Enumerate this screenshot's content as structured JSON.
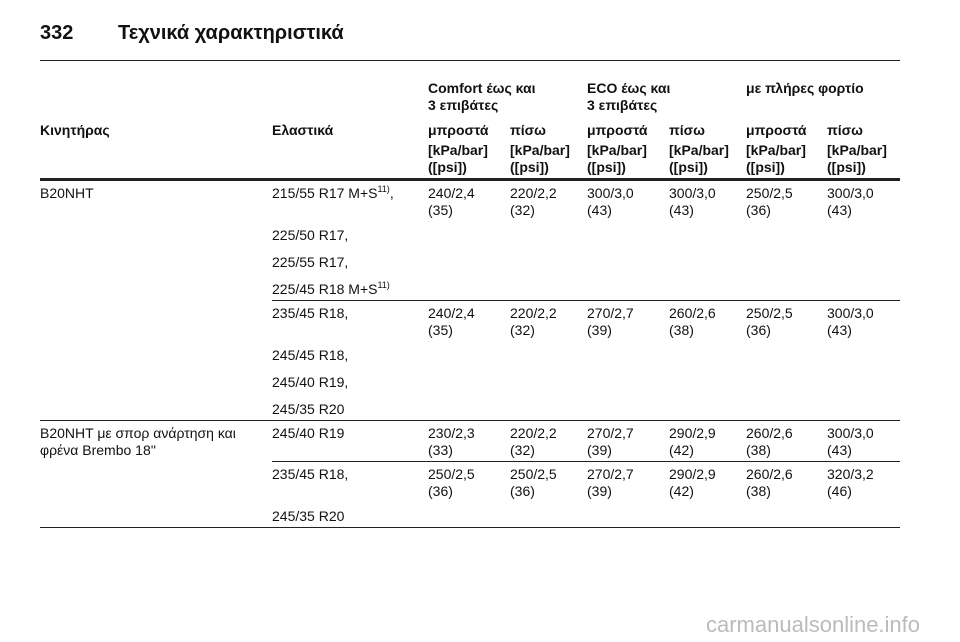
{
  "header": {
    "page_number": "332",
    "title": "Τεχνικά χαρακτηριστικά"
  },
  "table": {
    "group_headers": [
      "Comfort έως και\n3 επιβάτες",
      "ECO έως και\n3 επιβάτες",
      "με πλήρες φορτίο"
    ],
    "column_headers": [
      "Κινητήρας",
      "Ελαστικά",
      "μπροστά",
      "πίσω",
      "μπροστά",
      "πίσω",
      "μπροστά",
      "πίσω"
    ],
    "units": [
      "[kPa/bar]\n([psi])",
      "[kPa/bar]\n([psi])",
      "[kPa/bar]\n([psi])",
      "[kPa/bar]\n([psi])",
      "[kPa/bar]\n([psi])",
      "[kPa/bar]\n([psi])"
    ],
    "rows": [
      {
        "engine": "B20NHT",
        "groups": [
          {
            "tires": [
              {
                "text": "215/55 R17 M+S",
                "sup": "11)",
                "after": ","
              },
              {
                "text": "225/50 R17,"
              },
              {
                "text": "225/55 R17,"
              },
              {
                "text": "225/45 R18 M+S",
                "sup": "11)"
              }
            ],
            "values": [
              [
                "240/2,4",
                "(35)"
              ],
              [
                "220/2,2",
                "(32)"
              ],
              [
                "300/3,0",
                "(43)"
              ],
              [
                "300/3,0",
                "(43)"
              ],
              [
                "250/2,5",
                "(36)"
              ],
              [
                "300/3,0",
                "(43)"
              ]
            ]
          },
          {
            "tires": [
              {
                "text": "235/45 R18,"
              },
              {
                "text": "245/45 R18,"
              },
              {
                "text": "245/40 R19,"
              },
              {
                "text": "245/35 R20"
              }
            ],
            "values": [
              [
                "240/2,4",
                "(35)"
              ],
              [
                "220/2,2",
                "(32)"
              ],
              [
                "270/2,7",
                "(39)"
              ],
              [
                "260/2,6",
                "(38)"
              ],
              [
                "250/2,5",
                "(36)"
              ],
              [
                "300/3,0",
                "(43)"
              ]
            ]
          }
        ]
      },
      {
        "engine": "B20NHT με σπορ ανάρτηση και\nφρένα Brembo 18''",
        "groups": [
          {
            "tires": [
              {
                "text": "245/40 R19"
              }
            ],
            "values": [
              [
                "230/2,3",
                "(33)"
              ],
              [
                "220/2,2",
                "(32)"
              ],
              [
                "270/2,7",
                "(39)"
              ],
              [
                "290/2,9",
                "(42)"
              ],
              [
                "260/2,6",
                "(38)"
              ],
              [
                "300/3,0",
                "(43)"
              ]
            ]
          },
          {
            "tires": [
              {
                "text": "235/45 R18,"
              },
              {
                "text": "245/35 R20"
              }
            ],
            "values": [
              [
                "250/2,5",
                "(36)"
              ],
              [
                "250/2,5",
                "(36)"
              ],
              [
                "270/2,7",
                "(39)"
              ],
              [
                "290/2,9",
                "(42)"
              ],
              [
                "260/2,6",
                "(38)"
              ],
              [
                "320/3,2",
                "(46)"
              ]
            ]
          }
        ]
      }
    ]
  },
  "watermark": "carmanualsonline.info"
}
